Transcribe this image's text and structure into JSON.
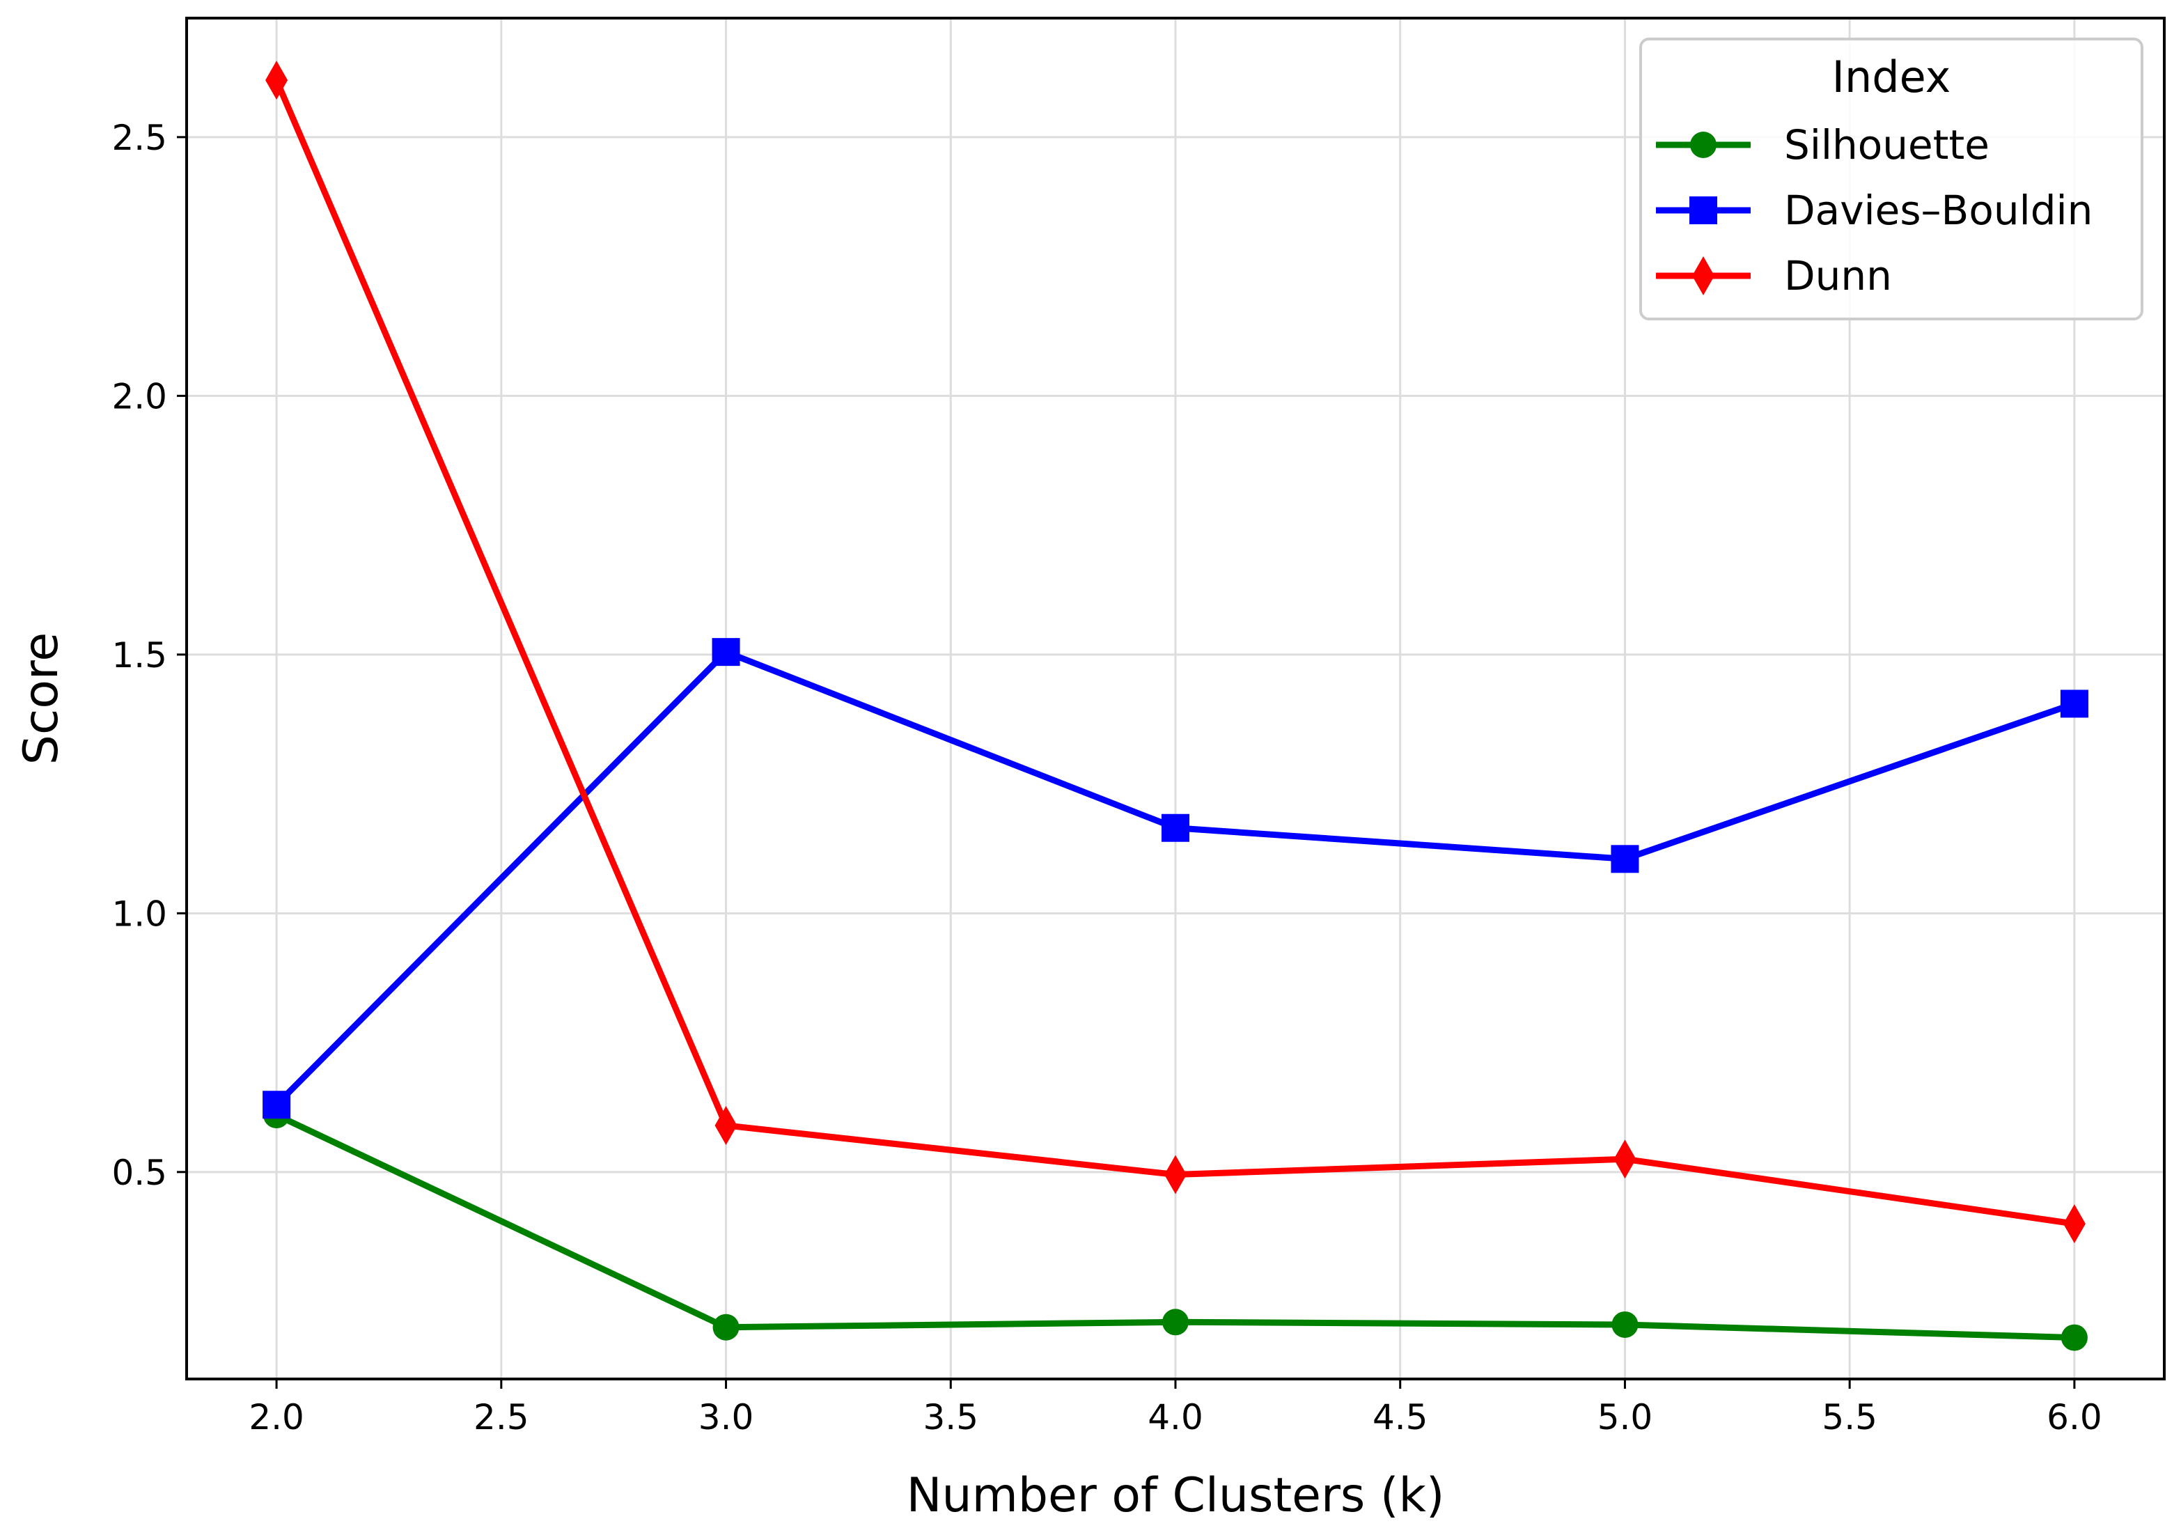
{
  "chart_data": {
    "type": "line",
    "title": "",
    "xlabel": "Number of Clusters (k)",
    "ylabel": "Score",
    "xlim": [
      1.8,
      6.2
    ],
    "ylim": [
      0.1,
      2.73
    ],
    "x_ticks": [
      "2.0",
      "2.5",
      "3.0",
      "3.5",
      "4.0",
      "4.5",
      "5.0",
      "5.5",
      "6.0"
    ],
    "y_ticks": [
      "0.5",
      "1.0",
      "1.5",
      "2.0",
      "2.5"
    ],
    "grid": true,
    "legend": {
      "title": "Index",
      "position": "top-right"
    },
    "x": [
      2,
      3,
      4,
      5,
      6
    ],
    "series": [
      {
        "name": "Silhouette",
        "color": "#008000",
        "marker": "circle",
        "values": [
          0.61,
          0.2,
          0.21,
          0.205,
          0.18
        ]
      },
      {
        "name": "Davies–Bouldin",
        "color": "#0000ff",
        "marker": "square",
        "values": [
          0.63,
          1.505,
          1.165,
          1.105,
          1.405
        ]
      },
      {
        "name": "Dunn",
        "color": "#ff0000",
        "marker": "diamond",
        "values": [
          2.61,
          0.59,
          0.495,
          0.525,
          0.4
        ]
      }
    ]
  }
}
